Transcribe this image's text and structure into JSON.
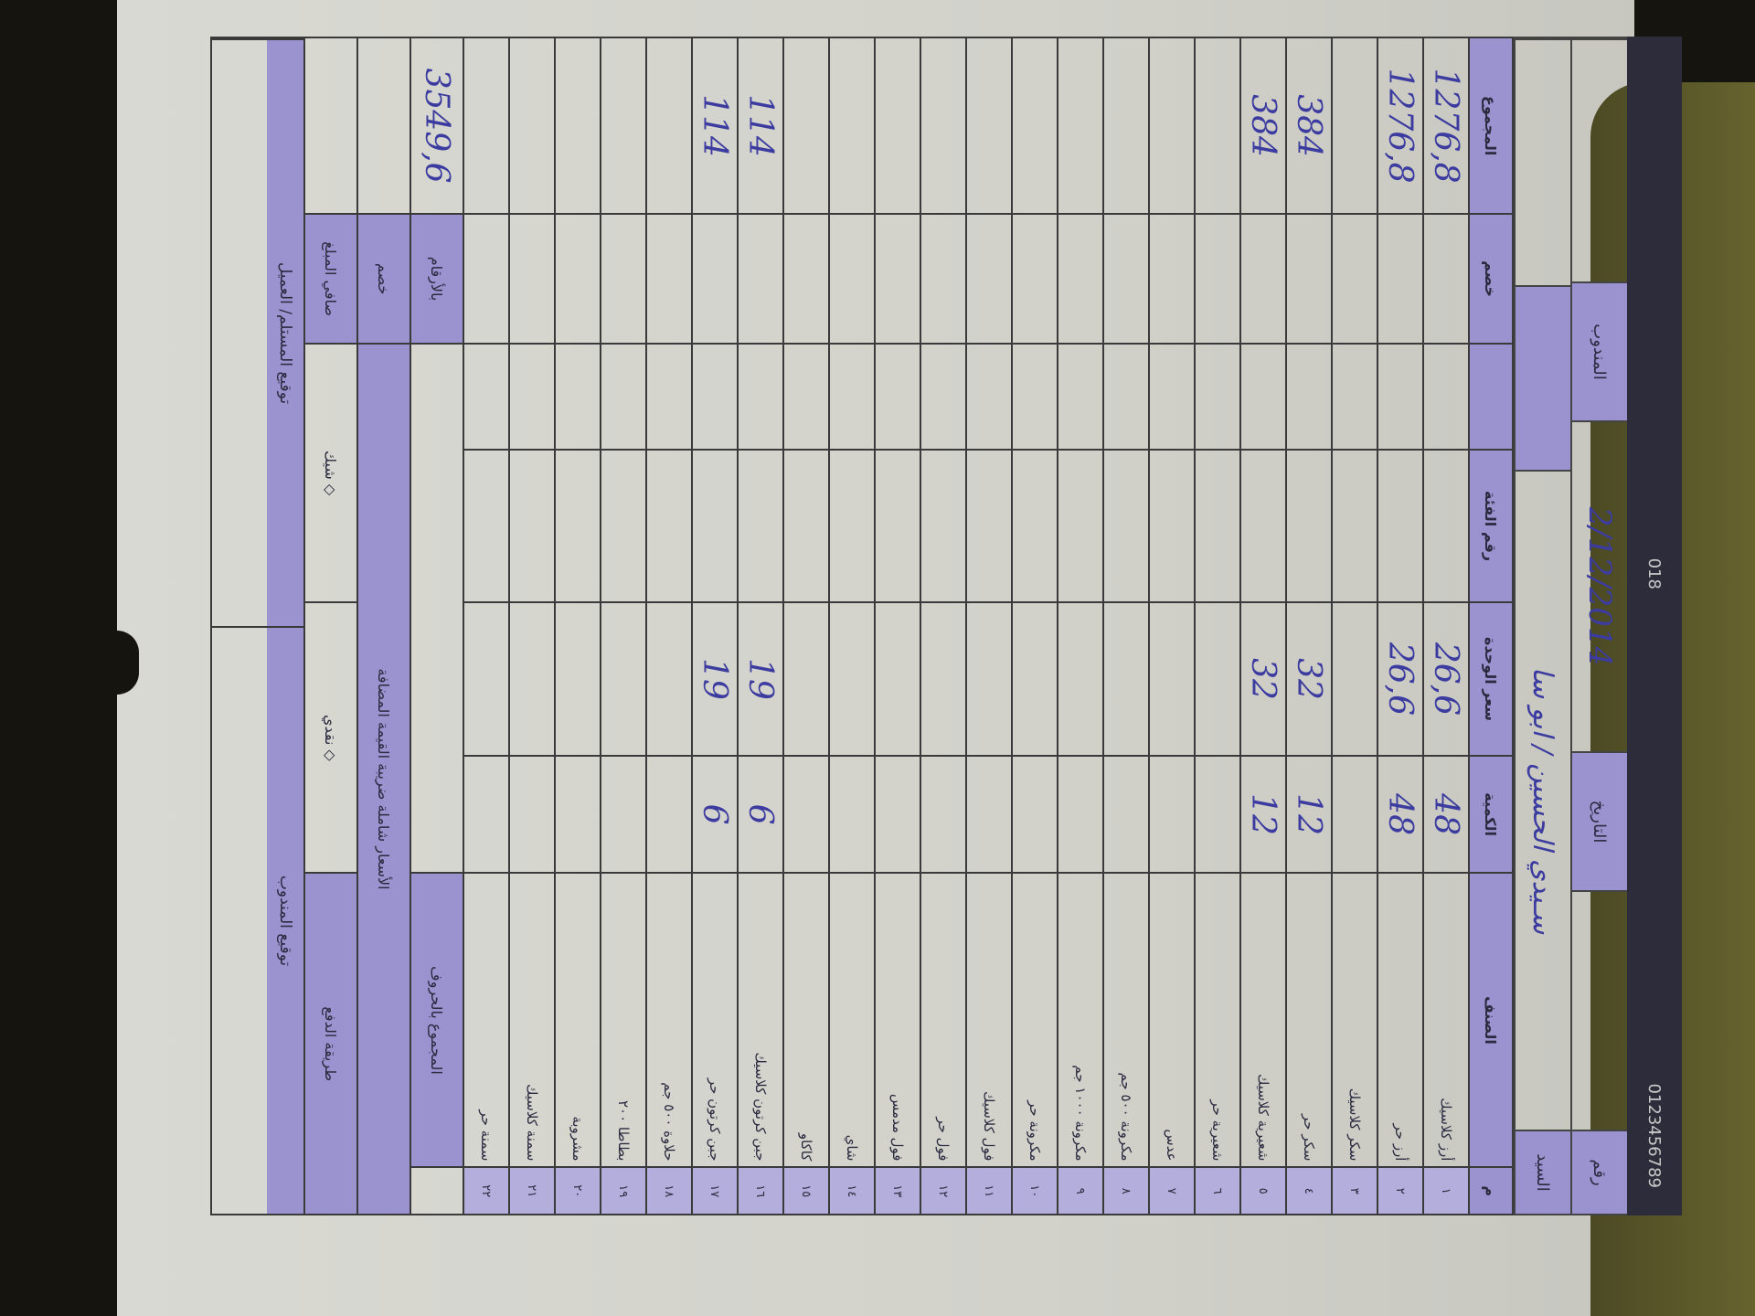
{
  "colors": {
    "header_fill": "#9a93cf",
    "ink": "#3b3ba0",
    "paper": "#d6d6d0"
  },
  "top_band": {
    "left": "0123456789",
    "center": "018"
  },
  "header": {
    "date_label": "التاريخ",
    "date_value": "2/12/2014",
    "customer_label": "السيد",
    "customer_value": "سـيدي الحسين / ابو سا",
    "rep_label": "المندوب",
    "no_label": "رقم"
  },
  "table": {
    "columns": [
      "م",
      "الصنف",
      "الكمية",
      "سعر الوحدة",
      "رقم الفئة",
      "",
      "خصم",
      "المجموع"
    ],
    "rows": [
      {
        "n": "١",
        "item": "أرز كلاسيك",
        "qty": "48",
        "price": "26,6",
        "total": "1276,8"
      },
      {
        "n": "٢",
        "item": "أرز حر",
        "qty": "48",
        "price": "26,6",
        "total": "1276,8"
      },
      {
        "n": "٣",
        "item": "سكر كلاسيك",
        "qty": "",
        "price": "",
        "total": ""
      },
      {
        "n": "٤",
        "item": "سكر حر",
        "qty": "12",
        "price": "32",
        "total": "384"
      },
      {
        "n": "٥",
        "item": "شعيرية كلاسيك",
        "qty": "12",
        "price": "32",
        "total": "384"
      },
      {
        "n": "٦",
        "item": "شعيرية حر",
        "qty": "",
        "price": "",
        "total": ""
      },
      {
        "n": "٧",
        "item": "عدس",
        "qty": "",
        "price": "",
        "total": ""
      },
      {
        "n": "٨",
        "item": "مكرونة ٥٠٠ جم",
        "qty": "",
        "price": "",
        "total": ""
      },
      {
        "n": "٩",
        "item": "مكرونة ١٠٠٠ جم",
        "qty": "",
        "price": "",
        "total": ""
      },
      {
        "n": "١٠",
        "item": "مكرونة حر",
        "qty": "",
        "price": "",
        "total": ""
      },
      {
        "n": "١١",
        "item": "فول كلاسيك",
        "qty": "",
        "price": "",
        "total": ""
      },
      {
        "n": "١٢",
        "item": "فول حر",
        "qty": "",
        "price": "",
        "total": ""
      },
      {
        "n": "١٣",
        "item": "فول مدمس",
        "qty": "",
        "price": "",
        "total": ""
      },
      {
        "n": "١٤",
        "item": "شاي",
        "qty": "",
        "price": "",
        "total": ""
      },
      {
        "n": "١٥",
        "item": "كاكاو",
        "qty": "",
        "price": "",
        "total": ""
      },
      {
        "n": "١٦",
        "item": "جبن كرتون كلاسيك",
        "qty": "6",
        "price": "19",
        "total": "114"
      },
      {
        "n": "١٧",
        "item": "جبن كرتون حر",
        "qty": "6",
        "price": "19",
        "total": "114"
      },
      {
        "n": "١٨",
        "item": "حلاوة ٥٠٠ جم",
        "qty": "",
        "price": "",
        "total": ""
      },
      {
        "n": "١٩",
        "item": "بطاطا ٢٠٠",
        "qty": "",
        "price": "",
        "total": ""
      },
      {
        "n": "٢٠",
        "item": "مشروبة",
        "qty": "",
        "price": "",
        "total": ""
      },
      {
        "n": "٢١",
        "item": "سمنة كلاسيك",
        "qty": "",
        "price": "",
        "total": ""
      },
      {
        "n": "٢٢",
        "item": "سمنة حر",
        "qty": "",
        "price": "",
        "total": ""
      }
    ]
  },
  "summary": {
    "words_label": "المجموع بالحروف",
    "digits_label": "بالأرقام",
    "digits_value": "3549,6",
    "tax_note": "الأسعار شاملة ضريبة القيمة المضافة",
    "discount_label": "خصم",
    "payment_label": "طريقة الدفع",
    "cash": "نقدي",
    "cheque": "شيك",
    "net_label": "صافي المبلغ",
    "sig_rep": "توقيع المندوب",
    "sig_customer": "توقيع المستلم/ العميل"
  }
}
